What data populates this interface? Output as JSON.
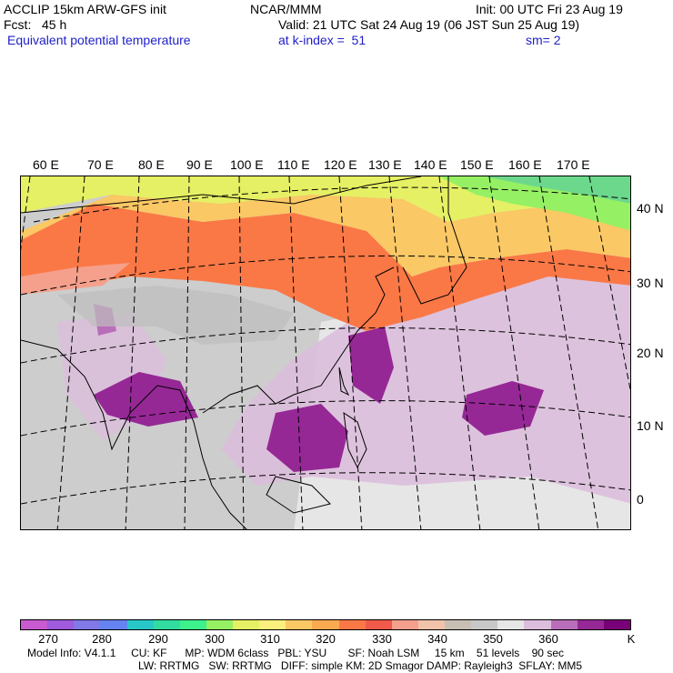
{
  "header": {
    "title": "ACCLIP 15km ARW-GFS init",
    "org": "NCAR/MMM",
    "init": "Init: 00 UTC Fri 23 Aug 19",
    "fcst": "Fcst:   45 h",
    "valid": "Valid: 21 UTC Sat 24 Aug 19 (06 JST Sun 25 Aug 19)",
    "field": "Equivalent potential temperature",
    "level": "at k-index =  51",
    "smooth": "sm= 2"
  },
  "map": {
    "lon_labels": [
      "60 E",
      "70 E",
      "80 E",
      "90 E",
      "100 E",
      "110 E",
      "120 E",
      "130 E",
      "140 E",
      "150 E",
      "160 E",
      "170 E"
    ],
    "lat_labels": [
      "40 N",
      "30 N",
      "20 N",
      "10 N",
      "0"
    ]
  },
  "colorbar": {
    "colors": [
      "#c85ad2",
      "#a05adc",
      "#8278e6",
      "#6482f0",
      "#28c8c8",
      "#32dca0",
      "#3cf08c",
      "#96f064",
      "#e6f064",
      "#faf07d",
      "#fac864",
      "#faaa50",
      "#fa7846",
      "#f05a4b",
      "#f5a08c",
      "#f0c3aa",
      "#c8bfb4",
      "#c8c8c8",
      "#e6e6e6",
      "#dcbedc",
      "#b96eb9",
      "#962896",
      "#780078"
    ],
    "labels": [
      "270",
      "280",
      "290",
      "300",
      "310",
      "320",
      "330",
      "340",
      "350",
      "360"
    ],
    "unit": "K"
  },
  "footer": {
    "line1": "Model Info: V4.1.1     CU: KF      MP: WDM 6class   PBL: YSU       SF: Noah LSM     15 km    51 levels    90 sec",
    "line2": "LW: RRTMG   SW: RRTMG   DIFF: simple KM: 2D Smagor DAMP: Rayleigh3  SFLAY: MM5"
  }
}
